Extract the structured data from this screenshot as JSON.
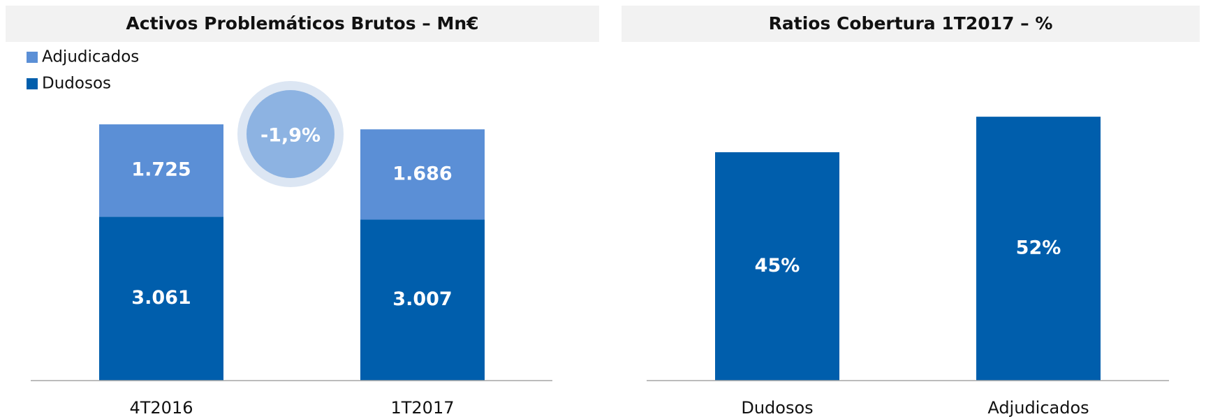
{
  "chart_data": [
    {
      "type": "stacked_bar",
      "title": "Activos Problemáticos Brutos – Mn€",
      "categories": [
        "4T2016",
        "1T2017"
      ],
      "series": [
        {
          "name": "Dudosos",
          "color": "#005eac",
          "values": [
            3061,
            3007
          ],
          "value_labels": [
            "3.061",
            "3.007"
          ]
        },
        {
          "name": "Adjudicados",
          "color": "#5b8fd6",
          "values": [
            1725,
            1686
          ],
          "value_labels": [
            "1.725",
            "1.686"
          ]
        }
      ],
      "annotation": "-1,9%",
      "ylim": [
        0,
        6000
      ]
    },
    {
      "type": "bar",
      "title": "Ratios Cobertura 1T2017 – %",
      "categories": [
        "Dudosos",
        "Adjudicados"
      ],
      "values": [
        45,
        52
      ],
      "value_labels": [
        "45%",
        "52%"
      ],
      "color": "#005eac",
      "ylim": [
        0,
        60
      ]
    }
  ]
}
